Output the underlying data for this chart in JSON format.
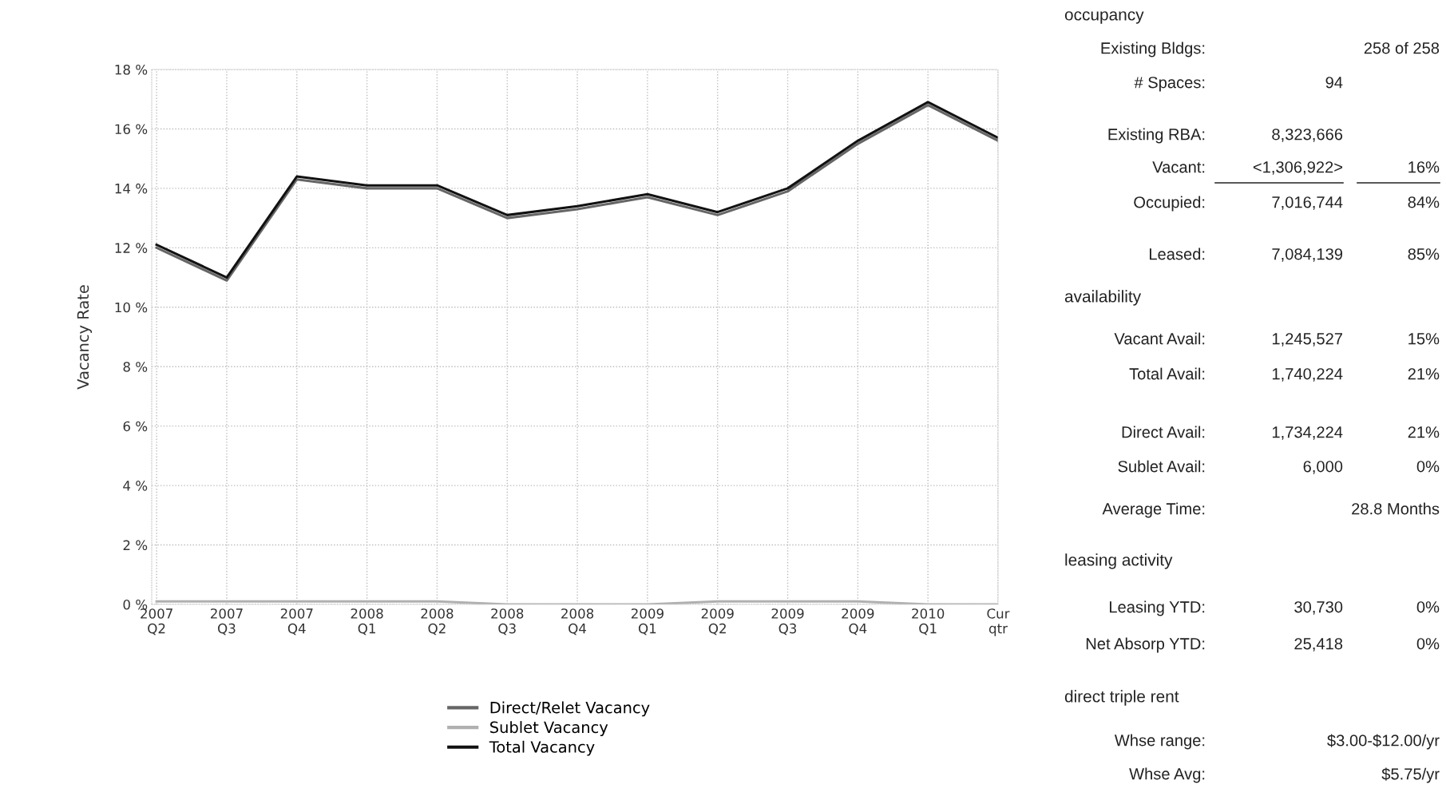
{
  "chart_data": [
    {
      "type": "line",
      "ylabel": "Vacancy Rate",
      "categories": [
        "2007\nQ2",
        "2007\nQ3",
        "2007\nQ4",
        "2008\nQ1",
        "2008\nQ2",
        "2008\nQ3",
        "2008\nQ4",
        "2009\nQ1",
        "2009\nQ2",
        "2009\nQ3",
        "2009\nQ4",
        "2010\nQ1",
        "Cur\nqtr"
      ],
      "series": [
        {
          "name": "Direct/Relet Vacancy",
          "color": "#666666",
          "values": [
            12.0,
            10.9,
            14.3,
            14.0,
            14.0,
            13.0,
            13.3,
            13.7,
            13.1,
            13.9,
            15.5,
            16.8,
            15.6
          ]
        },
        {
          "name": "Sublet Vacancy",
          "color": "#b0b0b0",
          "values": [
            0.1,
            0.1,
            0.1,
            0.1,
            0.1,
            0.0,
            0.0,
            0.0,
            0.1,
            0.1,
            0.1,
            0.0,
            0.0
          ]
        },
        {
          "name": "Total Vacancy",
          "color": "#111111",
          "values": [
            12.1,
            11.0,
            14.4,
            14.1,
            14.1,
            13.1,
            13.4,
            13.8,
            13.2,
            14.0,
            15.6,
            16.9,
            15.7
          ]
        }
      ],
      "ylim": [
        0,
        18
      ],
      "yticks": [
        {
          "value": 0,
          "label": "0 %"
        },
        {
          "value": 2,
          "label": "2 %"
        },
        {
          "value": 4,
          "label": "4 %"
        },
        {
          "value": 6,
          "label": "6 %"
        },
        {
          "value": 8,
          "label": "8 %"
        },
        {
          "value": 10,
          "label": "10 %"
        },
        {
          "value": 12,
          "label": "12 %"
        },
        {
          "value": 14,
          "label": "14 %"
        },
        {
          "value": 16,
          "label": "16 %"
        },
        {
          "value": 18,
          "label": "18 %"
        }
      ],
      "grid": true,
      "legend": "bottom",
      "marker": "none",
      "line_style": "solid"
    },
    {
      "type": "other",
      "annotations": [
        "occupancy",
        "Existing Bldgs:",
        "258 of 258",
        "# Spaces:",
        "94",
        "Existing RBA:",
        "8,323,666",
        "Vacant:",
        "<1,306,922>",
        "16%",
        "Occupied:",
        "7,016,744",
        "84%",
        "Leased:",
        "7,084,139",
        "85%",
        "availability",
        "Vacant Avail:",
        "1,245,527",
        "15%",
        "Total Avail:",
        "1,740,224",
        "21%",
        "Direct Avail:",
        "1,734,224",
        "21%",
        "Sublet Avail:",
        "6,000",
        "0%",
        "Average Time:",
        "28.8 Months",
        "leasing activity",
        "Leasing YTD:",
        "30,730",
        "0%",
        "Net Absorp YTD:",
        "25,418",
        "0%",
        "direct triple rent",
        "Whse range:",
        "$3.00-$12.00/yr",
        "Whse Avg:",
        "$5.75/yr"
      ]
    }
  ]
}
